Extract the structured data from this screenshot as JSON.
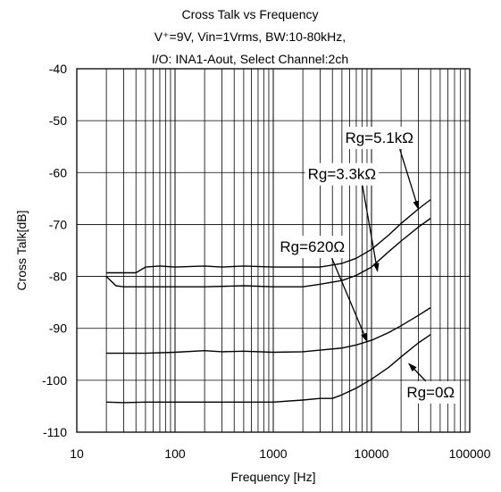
{
  "chart_data": {
    "type": "line",
    "title_lines": [
      "Cross Talk vs Frequency",
      "V⁺=9V, Vin=1Vrms, BW:10-80kHz,",
      "I/O: INA1-Aout, Select Channel:2ch"
    ],
    "xlabel": "Frequency [Hz]",
    "ylabel": "Cross Talk[dB]",
    "x_scale": "log",
    "xlim": [
      10,
      100000
    ],
    "ylim": [
      -110,
      -40
    ],
    "x_ticks": [
      10,
      100,
      1000,
      10000,
      100000
    ],
    "x_tick_labels": [
      "10",
      "100",
      "1000",
      "10000",
      "100000"
    ],
    "y_ticks": [
      -40,
      -50,
      -60,
      -70,
      -80,
      -90,
      -100,
      -110
    ],
    "y_tick_labels": [
      "-40",
      "-50",
      "-60",
      "-70",
      "-80",
      "-90",
      "-100",
      "-110"
    ],
    "grid": true,
    "series": [
      {
        "name": "Rg=5.1kΩ",
        "x": [
          20,
          30,
          40,
          50,
          70,
          100,
          200,
          300,
          500,
          1000,
          2000,
          3000,
          5000,
          7000,
          10000,
          15000,
          20000,
          30000,
          40000
        ],
        "y": [
          -79.3,
          -79.3,
          -79.3,
          -78.2,
          -78.0,
          -78.2,
          -78.0,
          -78.2,
          -78.0,
          -78.2,
          -78.2,
          -78.2,
          -77.5,
          -76.5,
          -74.8,
          -72.0,
          -69.8,
          -67.0,
          -65.2
        ]
      },
      {
        "name": "Rg=3.3kΩ",
        "x": [
          20,
          25,
          30,
          50,
          100,
          200,
          500,
          1000,
          2000,
          3000,
          5000,
          7000,
          10000,
          15000,
          20000,
          30000,
          40000
        ],
        "y": [
          -80.0,
          -81.8,
          -82.0,
          -82.0,
          -82.0,
          -82.0,
          -81.8,
          -82.0,
          -82.0,
          -81.5,
          -80.8,
          -79.8,
          -78.2,
          -75.2,
          -73.2,
          -70.5,
          -68.8
        ]
      },
      {
        "name": "Rg=620Ω",
        "x": [
          20,
          50,
          100,
          200,
          300,
          500,
          1000,
          2000,
          3000,
          5000,
          7000,
          10000,
          15000,
          20000,
          30000,
          40000
        ],
        "y": [
          -94.8,
          -94.8,
          -94.6,
          -94.3,
          -94.5,
          -94.4,
          -94.6,
          -94.5,
          -94.2,
          -93.8,
          -93.2,
          -92.3,
          -90.8,
          -89.5,
          -87.5,
          -86.0
        ]
      },
      {
        "name": "Rg=0Ω",
        "x": [
          20,
          30,
          50,
          100,
          200,
          500,
          1000,
          2000,
          3000,
          4000,
          5000,
          7000,
          10000,
          15000,
          20000,
          30000,
          40000
        ],
        "y": [
          -104.2,
          -104.3,
          -104.2,
          -104.2,
          -104.2,
          -104.2,
          -104.2,
          -103.8,
          -103.5,
          -103.5,
          -102.8,
          -101.5,
          -99.8,
          -97.5,
          -95.5,
          -92.8,
          -91.2
        ]
      }
    ],
    "annotations": [
      {
        "text": "Rg=5.1kΩ",
        "anchor_x": 12000,
        "anchor_y": -53.5,
        "target_x": 30000,
        "target_y": -67.0
      },
      {
        "text": "Rg=3.3kΩ",
        "anchor_x": 5000,
        "anchor_y": -60.5,
        "target_x": 11500,
        "target_y": -79.0
      },
      {
        "text": "Rg=620Ω",
        "anchor_x": 2500,
        "anchor_y": -74.5,
        "target_x": 9000,
        "target_y": -92.5
      },
      {
        "text": "Rg=0Ω",
        "anchor_x": 40000,
        "anchor_y": -102.5,
        "target_x": 24000,
        "target_y": -96.8
      }
    ]
  }
}
